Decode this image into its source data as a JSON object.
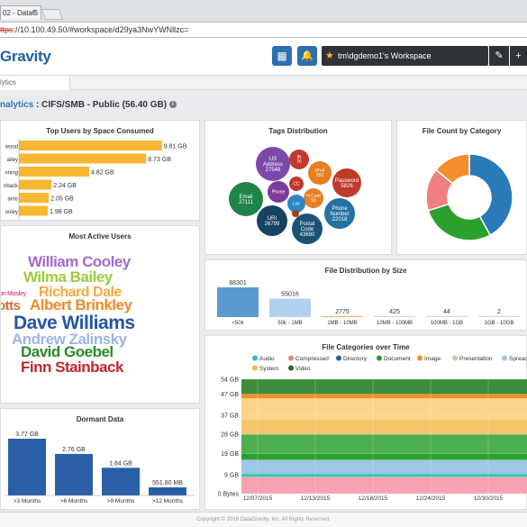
{
  "browser": {
    "tab_title": "02 - DataG",
    "tab_close": "×",
    "url_struck": "ttps",
    "url_rest": "://10.100.49.50/#workspace/d29ya3NwYWNllzc="
  },
  "app": {
    "logo": "Gravity",
    "grid_icon": "▦",
    "bell_icon": "🔔",
    "workspace": "tm\\dgdemo1's Workspace",
    "edit_icon": "✎",
    "add_icon": "+",
    "subtab": "lytics"
  },
  "breadcrumb": {
    "prefix": "nalytics",
    "rest": " : CIFS/SMB - Public (56.40 GB) ",
    "info": "i"
  },
  "top_users": {
    "title": "Top Users by Space Consumed",
    "rows": [
      {
        "label": "wood",
        "value": "9.81 GB",
        "v": 9.81
      },
      {
        "label": "ailey",
        "value": "8.73 GB",
        "v": 8.73
      },
      {
        "label": "nning",
        "value": "4.82 GB",
        "v": 4.82
      },
      {
        "label": "nback",
        "value": "2.24 GB",
        "v": 2.24
      },
      {
        "label": "arris",
        "value": "2.05 GB",
        "v": 2.05
      },
      {
        "label": "ooley",
        "value": "1.98 GB",
        "v": 1.98
      }
    ]
  },
  "active_users": {
    "title": "Most Active Users",
    "words": [
      {
        "t": "William Cooley",
        "c": "#a36ad0"
      },
      {
        "t": "Wilma Bailey",
        "c": "#9ccc3c"
      },
      {
        "t": "Richard Dale",
        "c": "#f4a940"
      },
      {
        "t": "on Mosley",
        "c": "#e0608a"
      },
      {
        "t": "otts",
        "c": "#e06a2c"
      },
      {
        "t": "Albert Brinkley",
        "c": "#f08a24"
      },
      {
        "t": "Dave Williams",
        "c": "#2456a6"
      },
      {
        "t": "Andrew Zalinsky",
        "c": "#9fb4e6"
      },
      {
        "t": "David Goebel",
        "c": "#2a8a2a"
      },
      {
        "t": "Finn Stainback",
        "c": "#c0262e"
      }
    ]
  },
  "dormant": {
    "title": "Dormant Data",
    "bars": [
      {
        "label": ">3 Months",
        "value": "3.77 GB",
        "v": 3.77
      },
      {
        "label": ">6 Months",
        "value": "2.76 GB",
        "v": 2.76
      },
      {
        "label": ">9 Months",
        "value": "1.84 GB",
        "v": 1.84
      },
      {
        "label": ">12 Months",
        "value": "551.80 MB",
        "v": 0.54
      }
    ]
  },
  "tags": {
    "title": "Tags Distribution",
    "bubbles": [
      {
        "l1": "US",
        "l2": "Address",
        "l3": "27548",
        "c": "#7b4aa8"
      },
      {
        "l1": "IN",
        "l2": "",
        "l3": "76",
        "c": "#c0392b"
      },
      {
        "l1": "IPv4",
        "l2": "",
        "l3": "292",
        "c": "#e67e22"
      },
      {
        "l1": "Password",
        "l2": "",
        "l3": "5826",
        "c": "#c0392b"
      },
      {
        "l1": "Email",
        "l2": "",
        "l3": "27111",
        "c": "#1e8449"
      },
      {
        "l1": "Phone",
        "l2": "",
        "l3": "",
        "c": "#7d3c98"
      },
      {
        "l1": "CC",
        "l2": "",
        "l3": "",
        "c": "#c0392b"
      },
      {
        "l1": "H Conf",
        "l2": "",
        "l3": "53",
        "c": "#e67e22"
      },
      {
        "l1": "Loc",
        "l2": "",
        "l3": "",
        "c": "#2e86c1"
      },
      {
        "l1": "Phone",
        "l2": "Number",
        "l3": "22018",
        "c": "#2471a3"
      },
      {
        "l1": "URI",
        "l2": "",
        "l3": "26799",
        "c": "#154360"
      },
      {
        "l1": "Postal",
        "l2": "Code",
        "l3": "43690",
        "c": "#1a5276"
      },
      {
        "l1": "",
        "l2": "",
        "l3": "",
        "c": "#a04000"
      }
    ]
  },
  "file_count": {
    "title": "File Count by Category",
    "slices": [
      {
        "v": 42,
        "c": "#2a7ab8"
      },
      {
        "v": 28,
        "c": "#2ca02c"
      },
      {
        "v": 16,
        "c": "#f08080"
      },
      {
        "v": 14,
        "c": "#f28e2b"
      }
    ]
  },
  "file_size": {
    "title": "File Distribution by Size",
    "bars": [
      {
        "label": "<50k",
        "value": "88301",
        "v": 88301
      },
      {
        "label": "50k - 1MB",
        "value": "55016",
        "v": 55016
      },
      {
        "label": "1MB - 10MB",
        "value": "2775",
        "v": 2775
      },
      {
        "label": "10MB - 100MB",
        "value": "425",
        "v": 425
      },
      {
        "label": "100MB - 1GB",
        "value": "44",
        "v": 44
      },
      {
        "label": "1GB - 10GB",
        "value": "2",
        "v": 2
      }
    ]
  },
  "categories_time": {
    "title": "File Categories over Time",
    "legend": [
      {
        "t": "Audio",
        "c": "#2ec4b6"
      },
      {
        "t": "Compressed",
        "c": "#f08080"
      },
      {
        "t": "Directory",
        "c": "#2a5fa8"
      },
      {
        "t": "Document",
        "c": "#2ca02c"
      },
      {
        "t": "Image",
        "c": "#f28e2b"
      },
      {
        "t": "Presentation",
        "c": "#a8d8a8"
      },
      {
        "t": "Spread",
        "c": "#9ec7e8"
      },
      {
        "t": "System",
        "c": "#f7b731"
      },
      {
        "t": "Video",
        "c": "#1d6b1d"
      }
    ],
    "yticks": [
      "54 GB",
      "47 GB",
      "37 GB",
      "28 GB",
      "19 GB",
      "9 GB",
      "0 Bytes"
    ],
    "xticks": [
      "12/07/2015",
      "12/13/2015",
      "12/18/2015",
      "12/24/2015",
      "12/30/2015"
    ]
  },
  "footer": "Copyright © 2016 DataGravity, Inc. All Rights Reserved."
}
